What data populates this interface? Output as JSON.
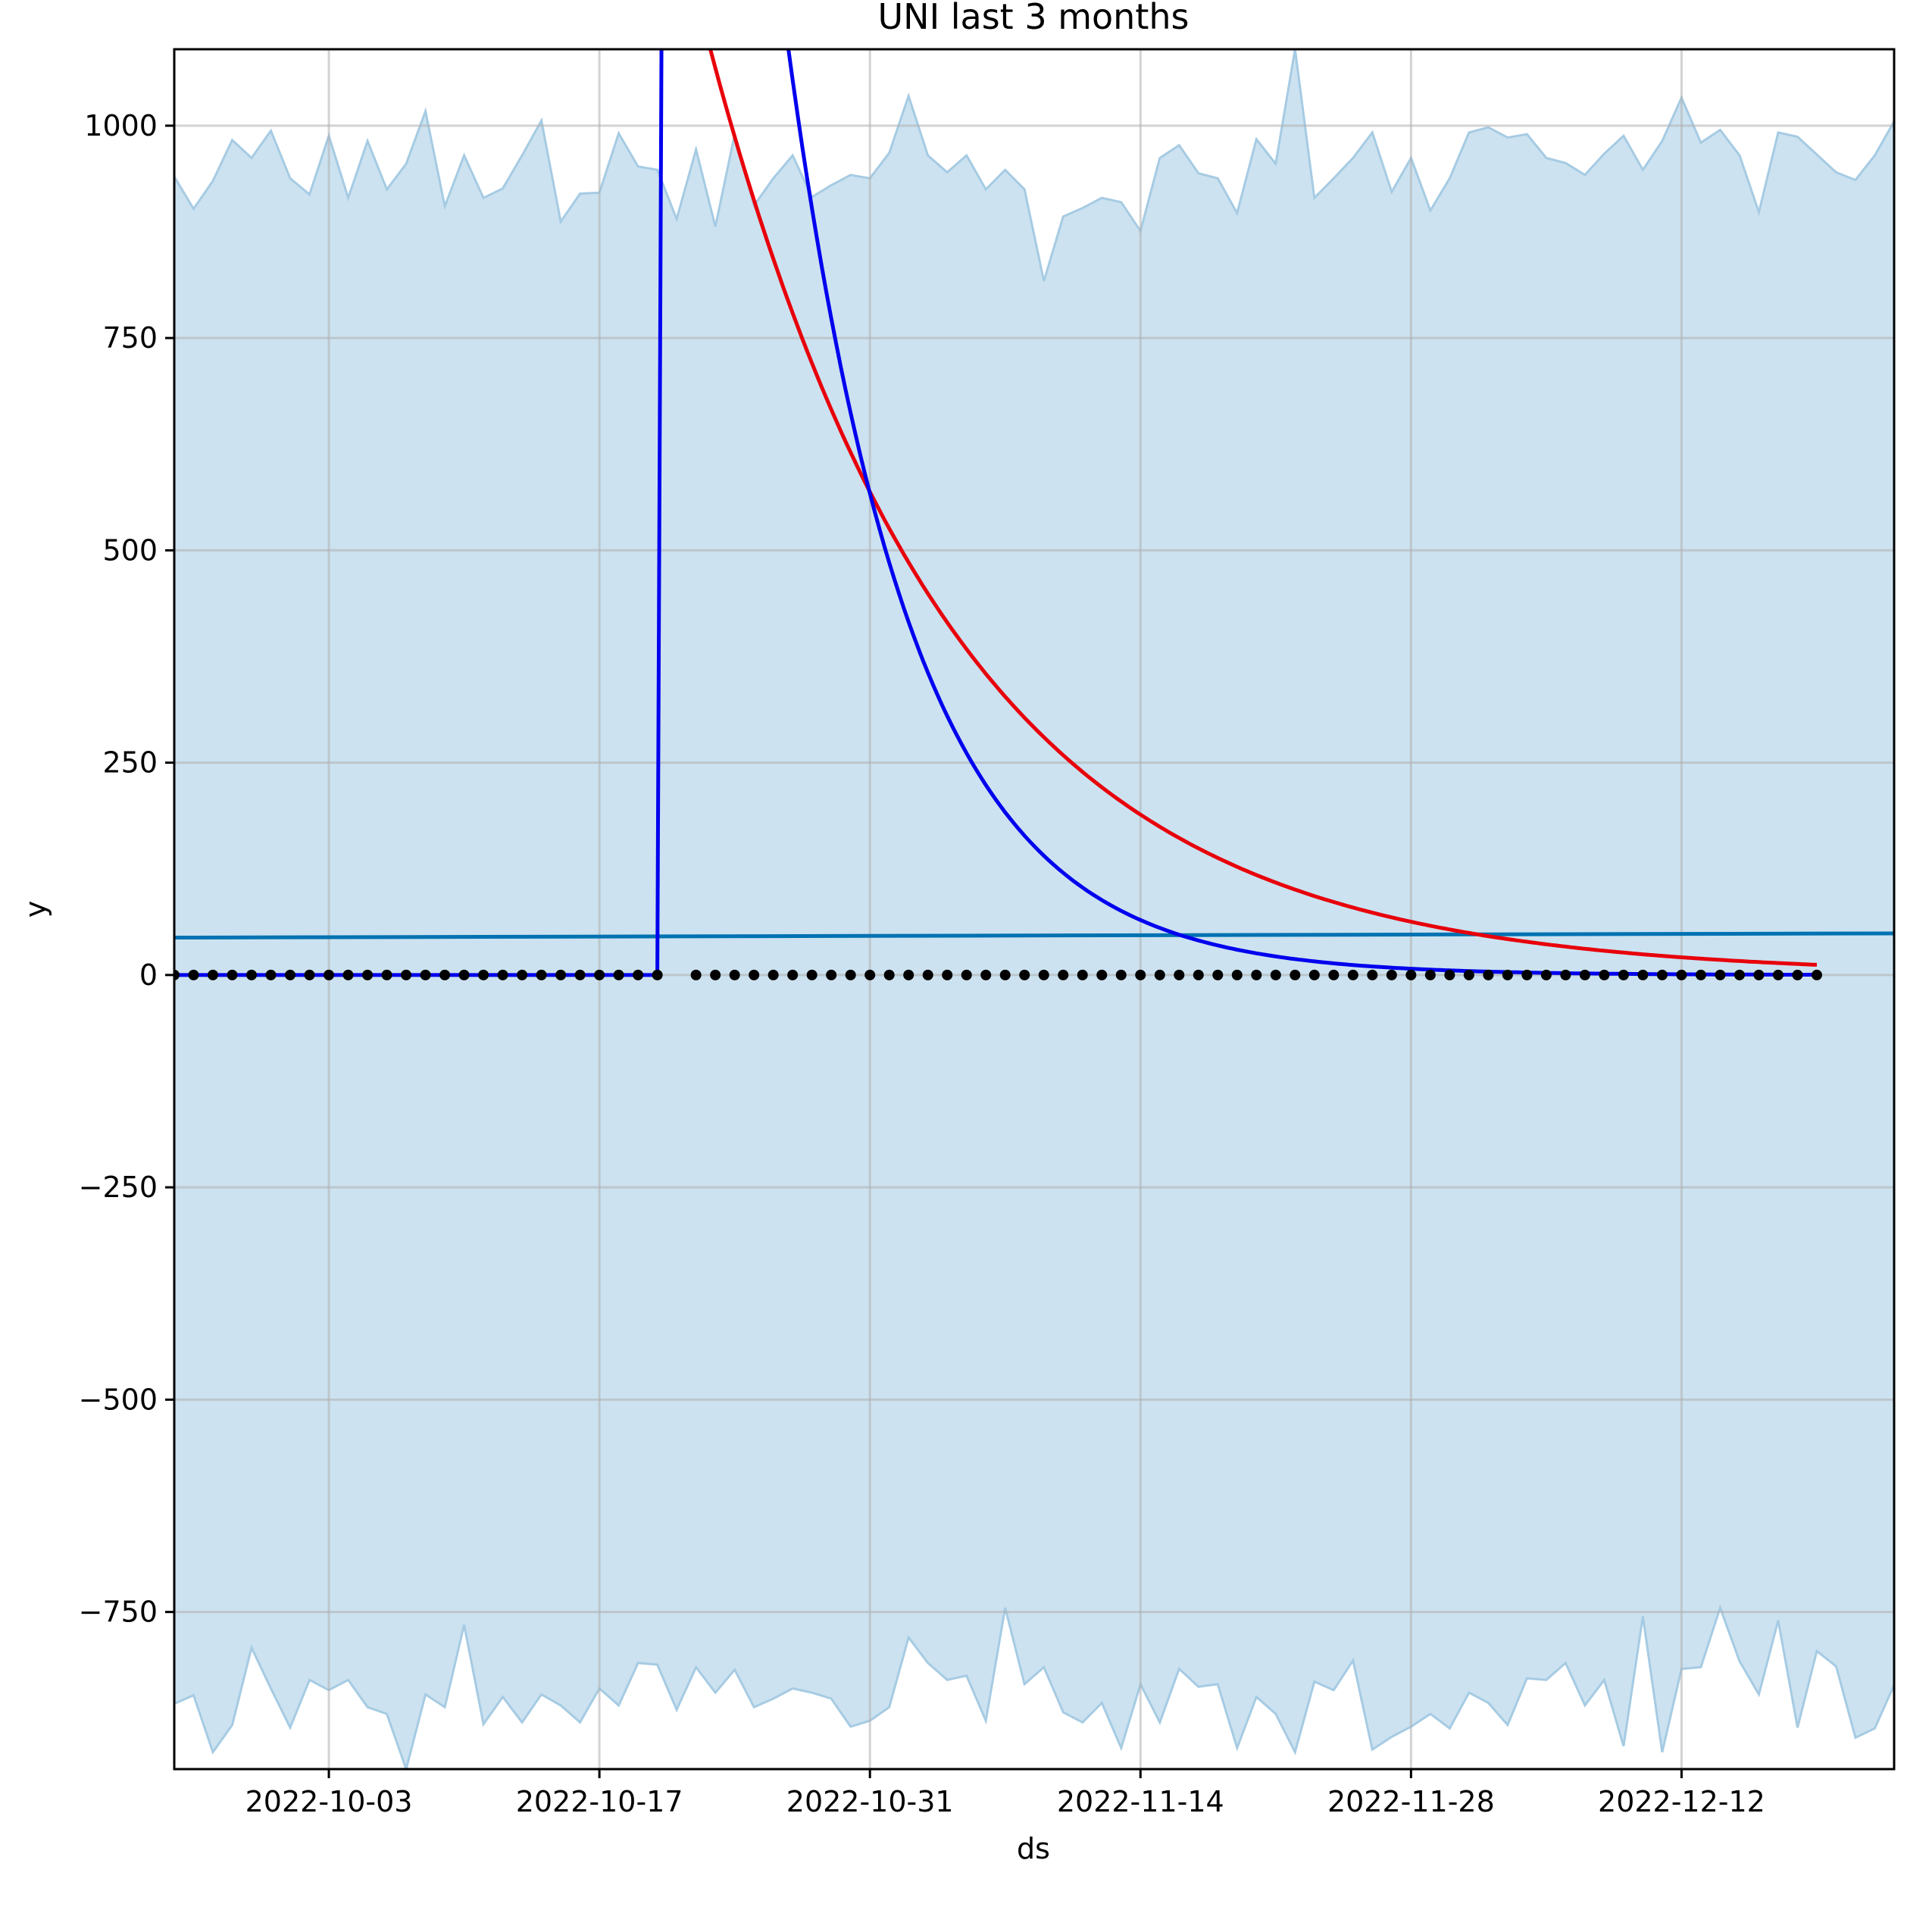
{
  "chart_data": {
    "type": "line",
    "title": "UNI last 3 months",
    "xlabel": "ds",
    "ylabel": "y",
    "x_start": "2022-09-25",
    "x_end": "2022-12-23",
    "xlim": [
      "2022-09-25",
      "2022-12-23"
    ],
    "ylim": [
      -935,
      1090
    ],
    "grid": true,
    "x_ticks": [
      "2022-10-03",
      "2022-10-17",
      "2022-10-31",
      "2022-11-14",
      "2022-11-28",
      "2022-12-12"
    ],
    "y_ticks": [
      -750,
      -500,
      -250,
      0,
      250,
      500,
      750,
      1000
    ],
    "y_tick_labels": [
      "−750",
      "−500",
      "−250",
      "0",
      "250",
      "500",
      "750",
      "1000"
    ],
    "colors": {
      "band": "#b4d4e9",
      "band_edge": "#a6cbe3",
      "trend": "#0072b2",
      "red": "#e8000b",
      "blue": "#0000ee",
      "points": "#000000",
      "grid": "#b0b0b0"
    },
    "uncertainty_band": {
      "upper": [
        940,
        902,
        935,
        983,
        962,
        994,
        938,
        919,
        988,
        915,
        982,
        925,
        955,
        1017,
        905,
        965,
        915,
        926,
        965,
        1006,
        887,
        920,
        921,
        991,
        952,
        948,
        890,
        972,
        881,
        990,
        906,
        938,
        965,
        916,
        930,
        942,
        938,
        968,
        1035,
        965,
        945,
        965,
        925,
        948,
        925,
        817,
        893,
        903,
        915,
        910,
        876,
        962,
        977,
        944,
        938,
        897,
        984,
        955,
        1090,
        915,
        938,
        962,
        992,
        922,
        962,
        900,
        938,
        992,
        998,
        986,
        990,
        962,
        956,
        942,
        967,
        988,
        948,
        982,
        1033,
        980,
        995,
        965,
        898,
        992,
        987,
        966,
        945,
        936,
        965,
        1005
      ],
      "lower": [
        -858,
        -848,
        -915,
        -883,
        -792,
        -840,
        -886,
        -830,
        -842,
        -830,
        -862,
        -870,
        -935,
        -847,
        -862,
        -765,
        -882,
        -850,
        -880,
        -847,
        -860,
        -880,
        -840,
        -860,
        -810,
        -812,
        -865,
        -815,
        -845,
        -818,
        -862,
        -852,
        -840,
        -845,
        -852,
        -885,
        -878,
        -862,
        -780,
        -810,
        -830,
        -825,
        -878,
        -745,
        -835,
        -815,
        -868,
        -880,
        -857,
        -910,
        -835,
        -880,
        -817,
        -838,
        -835,
        -910,
        -850,
        -870,
        -915,
        -832,
        -842,
        -807,
        -912,
        -897,
        -885,
        -870,
        -887,
        -845,
        -857,
        -883,
        -828,
        -830,
        -810,
        -860,
        -830,
        -908,
        -755,
        -915,
        -817,
        -815,
        -745,
        -808,
        -847,
        -760,
        -886,
        -796,
        -814,
        -898,
        -887,
        -836
      ]
    },
    "series": [
      {
        "values": [
          44,
          49
        ]
      },
      {
        "values": [
          0,
          0,
          0,
          0,
          0,
          0,
          0,
          0,
          0,
          0,
          0,
          0,
          0,
          0,
          0,
          0,
          0,
          0,
          0,
          0,
          0,
          0,
          0,
          0,
          0,
          0,
          0,
          0,
          0,
          0,
          0,
          0,
          0,
          0,
          0,
          0,
          0,
          0,
          0,
          0,
          0,
          0,
          0,
          0,
          0,
          0,
          0,
          0,
          0,
          0,
          0,
          0,
          0,
          0,
          0,
          0,
          0,
          0,
          0,
          0,
          0,
          0,
          0,
          0,
          0,
          0,
          0,
          0,
          0,
          0,
          0,
          0,
          0,
          0,
          0,
          0,
          0,
          0,
          0,
          0,
          0,
          0,
          0,
          0,
          0,
          0,
          0,
          0,
          0,
          0
        ]
      },
      {
        "values": [
          0,
          0,
          0,
          0,
          0,
          0,
          0,
          0,
          0,
          0,
          0,
          0,
          0,
          0,
          0,
          0,
          0,
          0,
          0,
          0,
          0,
          0,
          0,
          0,
          0,
          0,
          0,
          0,
          0,
          0,
          0,
          0,
          0,
          0,
          0,
          0,
          0,
          0,
          0,
          0,
          0,
          0,
          0,
          0,
          0,
          0,
          0,
          0,
          0,
          0,
          0,
          0,
          0,
          0,
          0,
          0,
          0,
          0,
          0,
          0,
          0,
          0,
          0,
          0,
          0,
          0,
          0,
          0,
          0,
          0,
          0,
          0,
          0,
          0,
          0,
          0,
          0,
          0,
          0,
          0,
          0,
          0,
          0,
          0,
          0,
          0,
          0,
          0,
          0,
          0
        ]
      }
    ],
    "observations": {
      "segment_1": {
        "from": "2022-09-25",
        "to": "2022-10-20",
        "value": 0
      },
      "segment_2": {
        "from": "2022-10-22",
        "to": "2022-12-19",
        "value": 0
      }
    },
    "red_curve": {
      "from": "2022-10-21",
      "to": "2022-12-19",
      "start_value": 1250,
      "end_value": 12
    },
    "blue_curve": {
      "flat_from": "2022-09-25",
      "flat_to": "2022-10-20",
      "peak_value": 1280,
      "end_date": "2022-12-19"
    }
  }
}
